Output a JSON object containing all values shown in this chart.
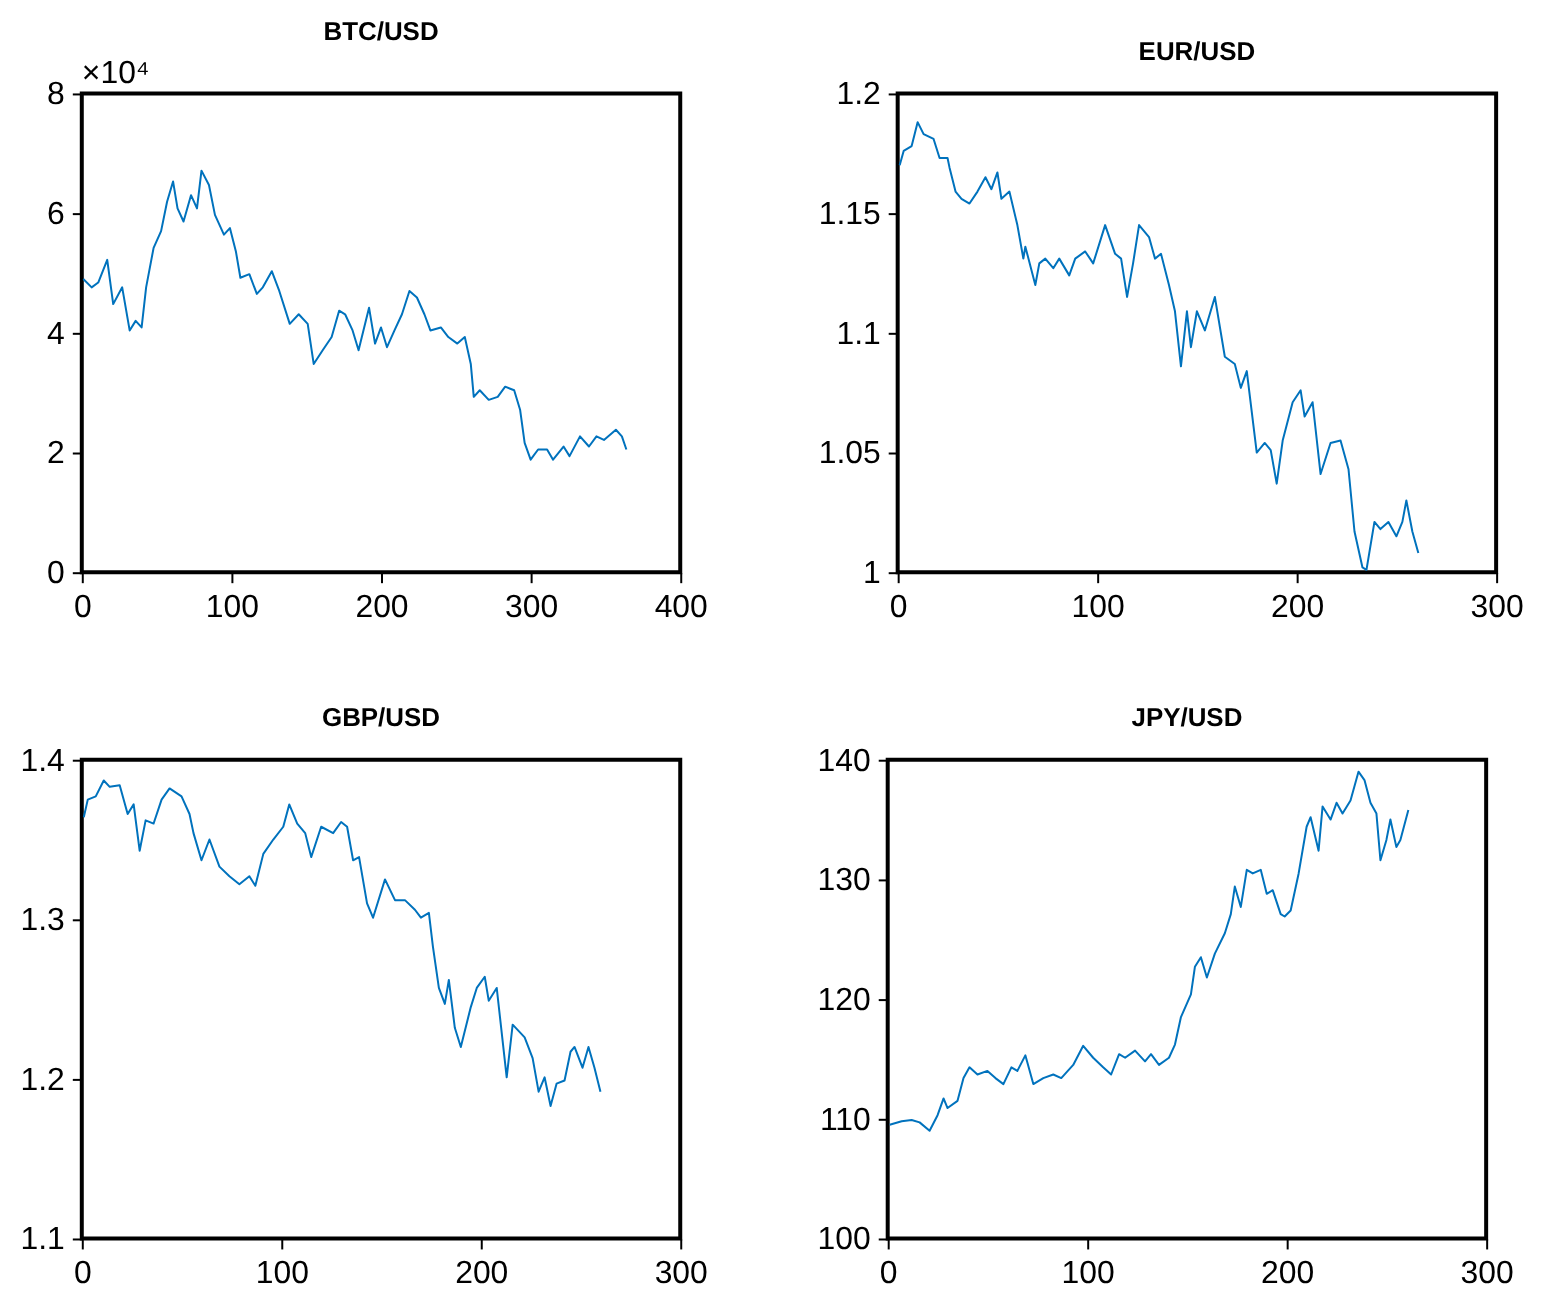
{
  "chart_data": [
    {
      "type": "line",
      "title": "BTC/USD",
      "annotations": [
        "×10⁴"
      ],
      "xlim": [
        0,
        400
      ],
      "xticks": [
        0,
        100,
        200,
        300,
        400
      ],
      "ylim": [
        0,
        8
      ],
      "yticks": [
        0,
        2,
        4,
        6,
        8
      ],
      "grid": false,
      "legend": false,
      "series": [
        {
          "color": "#0072bd",
          "x": [
            1,
            6.6,
            11,
            17,
            21,
            27,
            32,
            36,
            40,
            43,
            48,
            53,
            57,
            61,
            64,
            68,
            73,
            77,
            80,
            85,
            89,
            95,
            99,
            103,
            106,
            112,
            117,
            121,
            127,
            132,
            139,
            145,
            151,
            155,
            161,
            167,
            172,
            176,
            181,
            185,
            192,
            196,
            200,
            204,
            209,
            214,
            219,
            224,
            229,
            233,
            240,
            245,
            251,
            256,
            260,
            262,
            266,
            272,
            278,
            283,
            289,
            293,
            296,
            300,
            305,
            311,
            315,
            322,
            326,
            333,
            339,
            344,
            349,
            357,
            361,
            364
          ],
          "values": [
            4.9,
            4.76,
            4.84,
            5.22,
            4.48,
            4.76,
            4.04,
            4.2,
            4.09,
            4.76,
            5.42,
            5.7,
            6.19,
            6.53,
            6.08,
            5.86,
            6.3,
            6.08,
            6.71,
            6.47,
            5.97,
            5.64,
            5.75,
            5.36,
            4.92,
            4.98,
            4.65,
            4.76,
            5.03,
            4.7,
            4.15,
            4.31,
            4.15,
            3.48,
            3.71,
            3.93,
            4.37,
            4.31,
            4.04,
            3.71,
            4.42,
            3.82,
            4.09,
            3.76,
            4.04,
            4.31,
            4.7,
            4.59,
            4.31,
            4.04,
            4.09,
            3.93,
            3.82,
            3.93,
            3.48,
            2.93,
            3.04,
            2.88,
            2.93,
            3.1,
            3.04,
            2.71,
            2.16,
            1.88,
            2.05,
            2.05,
            1.88,
            2.1,
            1.94,
            2.27,
            2.1,
            2.27,
            2.21,
            2.38,
            2.27,
            2.05
          ]
        }
      ]
    },
    {
      "type": "line",
      "title": "EUR/USD",
      "xlim": [
        0,
        300
      ],
      "xticks": [
        0,
        100,
        200,
        300
      ],
      "ylim": [
        1,
        1.2
      ],
      "yticks": [
        1,
        1.05,
        1.1,
        1.15,
        1.2
      ],
      "grid": false,
      "legend": false,
      "series": [
        {
          "color": "#0072bd",
          "x": [
            1,
            3,
            7,
            10,
            13,
            18,
            21,
            25,
            26,
            29,
            32,
            36,
            40,
            44,
            47,
            50,
            52,
            56,
            60,
            63,
            64,
            69,
            71,
            74,
            78,
            81,
            86,
            89,
            94,
            98,
            104,
            109,
            112,
            115,
            118,
            121,
            126,
            129,
            132,
            136,
            139,
            142,
            145,
            147,
            150,
            154,
            159,
            164,
            169,
            172,
            175,
            180,
            184,
            187,
            190,
            193,
            198,
            202,
            204,
            208,
            212,
            217,
            222,
            226,
            229,
            233,
            235,
            239,
            242,
            246,
            250,
            253,
            255,
            258,
            261
          ],
          "values": [
            1.17,
            1.176,
            1.178,
            1.188,
            1.183,
            1.181,
            1.173,
            1.173,
            1.169,
            1.159,
            1.156,
            1.154,
            1.159,
            1.165,
            1.16,
            1.167,
            1.156,
            1.159,
            1.145,
            1.131,
            1.136,
            1.12,
            1.129,
            1.131,
            1.127,
            1.131,
            1.124,
            1.131,
            1.134,
            1.129,
            1.145,
            1.133,
            1.131,
            1.115,
            1.129,
            1.145,
            1.14,
            1.131,
            1.133,
            1.12,
            1.109,
            1.086,
            1.109,
            1.094,
            1.109,
            1.101,
            1.115,
            1.09,
            1.087,
            1.077,
            1.084,
            1.05,
            1.054,
            1.051,
            1.037,
            1.055,
            1.071,
            1.076,
            1.065,
            1.071,
            1.041,
            1.054,
            1.055,
            1.043,
            1.017,
            1.002,
            1.001,
            1.021,
            1.018,
            1.021,
            1.015,
            1.021,
            1.03,
            1.017,
            1.008
          ]
        }
      ]
    },
    {
      "type": "line",
      "title": "GBP/USD",
      "xlim": [
        0,
        300
      ],
      "xticks": [
        0,
        100,
        200,
        300
      ],
      "ylim": [
        1.1,
        1.4
      ],
      "yticks": [
        1.1,
        1.2,
        1.3,
        1.4
      ],
      "grid": false,
      "legend": false,
      "series": [
        {
          "color": "#0072bd",
          "x": [
            1,
            3,
            7,
            11,
            14,
            19,
            23,
            26,
            29,
            32,
            36,
            40,
            44,
            50,
            54,
            56,
            60,
            64,
            69,
            74,
            79,
            84,
            87,
            91,
            96,
            101,
            104,
            108,
            112,
            115,
            120,
            126,
            130,
            133,
            136,
            139,
            143,
            146,
            152,
            157,
            162,
            167,
            170,
            174,
            176,
            179,
            182,
            184,
            187,
            190,
            195,
            198,
            202,
            204,
            208,
            213,
            216,
            222,
            226,
            229,
            232,
            235,
            238,
            242,
            245,
            247,
            251,
            254,
            257,
            260
          ],
          "values": [
            1.364,
            1.375,
            1.377,
            1.387,
            1.383,
            1.384,
            1.366,
            1.372,
            1.343,
            1.362,
            1.36,
            1.375,
            1.382,
            1.377,
            1.366,
            1.354,
            1.337,
            1.35,
            1.333,
            1.327,
            1.322,
            1.327,
            1.321,
            1.341,
            1.35,
            1.358,
            1.372,
            1.36,
            1.354,
            1.339,
            1.358,
            1.354,
            1.361,
            1.358,
            1.337,
            1.339,
            1.31,
            1.301,
            1.325,
            1.312,
            1.312,
            1.306,
            1.301,
            1.304,
            1.283,
            1.257,
            1.247,
            1.262,
            1.232,
            1.22,
            1.245,
            1.257,
            1.264,
            1.249,
            1.257,
            1.201,
            1.234,
            1.226,
            1.213,
            1.192,
            1.201,
            1.183,
            1.197,
            1.199,
            1.217,
            1.22,
            1.207,
            1.22,
            1.207,
            1.192
          ]
        }
      ]
    },
    {
      "type": "line",
      "title": "JPY/USD",
      "xlim": [
        0,
        300
      ],
      "xticks": [
        0,
        100,
        200,
        300
      ],
      "ylim": [
        100,
        140
      ],
      "yticks": [
        100,
        110,
        120,
        130,
        140
      ],
      "grid": false,
      "legend": false,
      "series": [
        {
          "color": "#0072bd",
          "x": [
            1,
            7,
            12,
            16,
            21,
            25,
            28,
            30,
            35,
            38,
            41,
            45,
            50,
            54,
            58,
            62,
            65,
            69,
            73,
            78,
            83,
            87,
            93,
            98,
            103,
            108,
            112,
            116,
            119,
            124,
            129,
            132,
            136,
            141,
            144,
            147,
            152,
            154,
            157,
            160,
            164,
            169,
            172,
            174,
            177,
            180,
            183,
            187,
            190,
            193,
            197,
            199,
            202,
            206,
            210,
            212,
            216,
            218,
            222,
            225,
            228,
            232,
            236,
            239,
            242,
            245,
            247,
            250,
            252,
            255,
            257,
            261
          ],
          "values": [
            109.5,
            109.8,
            109.9,
            109.7,
            109.0,
            110.3,
            111.7,
            110.9,
            111.5,
            113.4,
            114.3,
            113.7,
            114.0,
            113.4,
            112.9,
            114.3,
            114.0,
            115.3,
            112.9,
            113.4,
            113.7,
            113.4,
            114.5,
            116.1,
            115.1,
            114.3,
            113.7,
            115.4,
            115.1,
            115.7,
            114.8,
            115.4,
            114.5,
            115.1,
            116.2,
            118.5,
            120.4,
            122.7,
            123.5,
            121.8,
            123.8,
            125.5,
            127.1,
            129.4,
            127.7,
            130.8,
            130.5,
            130.8,
            128.8,
            129.1,
            127.1,
            126.9,
            127.4,
            130.5,
            134.4,
            135.2,
            132.4,
            136.1,
            135.0,
            136.4,
            135.5,
            136.6,
            139.0,
            138.3,
            136.4,
            135.5,
            131.6,
            133.3,
            135.0,
            132.7,
            133.3,
            135.8
          ]
        }
      ]
    }
  ]
}
